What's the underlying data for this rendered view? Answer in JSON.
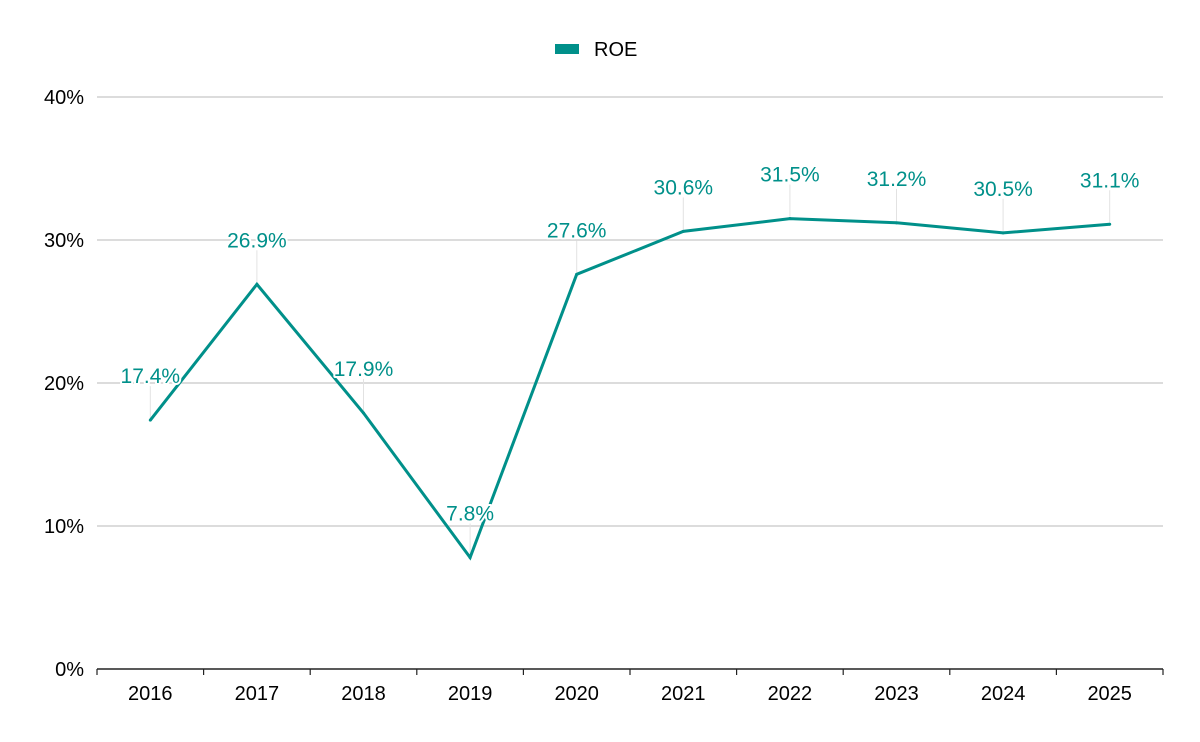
{
  "chart_data": {
    "type": "line",
    "title": "",
    "xlabel": "",
    "ylabel": "",
    "categories": [
      "2016",
      "2017",
      "2018",
      "2019",
      "2020",
      "2021",
      "2022",
      "2023",
      "2024",
      "2025"
    ],
    "series": [
      {
        "name": "ROE",
        "values": [
          17.4,
          26.9,
          17.9,
          7.8,
          27.6,
          30.6,
          31.5,
          31.2,
          30.5,
          31.1
        ],
        "labels": [
          "17.4%",
          "26.9%",
          "17.9%",
          "7.8%",
          "27.6%",
          "30.6%",
          "31.5%",
          "31.2%",
          "30.5%",
          "31.1%"
        ],
        "color": "#00908A"
      }
    ],
    "ylim": [
      0,
      40
    ],
    "yticks": [
      0,
      10,
      20,
      30,
      40
    ],
    "ytick_labels": [
      "0%",
      "10%",
      "20%",
      "30%",
      "40%"
    ],
    "grid": true,
    "legend_position": "top-center",
    "data_labels": true
  }
}
